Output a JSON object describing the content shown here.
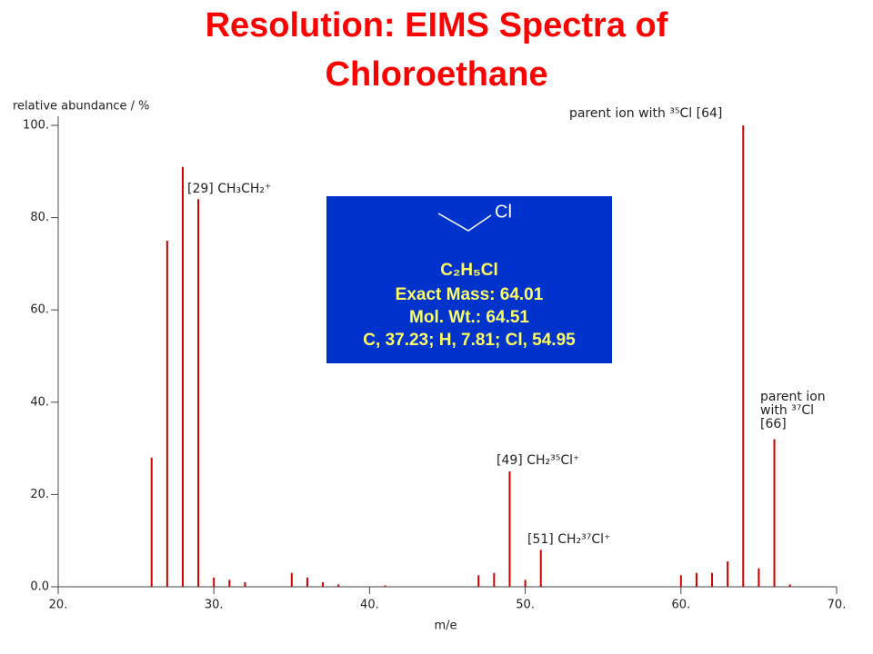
{
  "chart_data": {
    "type": "bar",
    "title": [
      "Resolution: EIMS Spectra of",
      "Chloroethane"
    ],
    "y_label": "relative abundance / %",
    "x_label": "m/e",
    "color": "#cc0000",
    "x": [
      26,
      27,
      28,
      29,
      30,
      31,
      32,
      35,
      36,
      37,
      38,
      41,
      47,
      48,
      49,
      50,
      51,
      60,
      61,
      62,
      63,
      64,
      65,
      66,
      67
    ],
    "values": [
      28,
      75,
      91,
      84,
      2,
      1.5,
      1,
      3,
      2,
      1,
      0.5,
      0.3,
      2.5,
      3,
      25,
      1.5,
      8,
      2.5,
      3,
      3,
      5.5,
      100,
      4,
      32,
      0.5
    ],
    "xlim": [
      20,
      70
    ],
    "ylim": [
      0,
      100
    ],
    "xticks": [
      {
        "value": 20,
        "label": "20."
      },
      {
        "value": 30,
        "label": "30."
      },
      {
        "value": 40,
        "label": "40."
      },
      {
        "value": 50,
        "label": "50."
      },
      {
        "value": 60,
        "label": "60."
      },
      {
        "value": 70,
        "label": "70."
      }
    ],
    "yticks": [
      {
        "value": 0,
        "label": "0.0"
      },
      {
        "value": 20,
        "label": "20."
      },
      {
        "value": 40,
        "label": "40."
      },
      {
        "value": 60,
        "label": "60."
      },
      {
        "value": 80,
        "label": "80."
      },
      {
        "value": 100,
        "label": "100."
      }
    ],
    "annotations": [
      {
        "lines": [
          "[29] CH₃CH₂⁺"
        ]
      },
      {
        "lines": [
          "parent ion with ³⁵Cl [64]"
        ]
      },
      {
        "lines": [
          "[49] CH₂³⁵Cl⁺"
        ]
      },
      {
        "lines": [
          "[51] CH₂³⁷Cl⁺"
        ]
      },
      {
        "lines": [
          "parent ion",
          "with ³⁷Cl",
          "[66]"
        ]
      }
    ],
    "info_box": {
      "atom": "Cl",
      "formula": "C₂H₅Cl",
      "exact_mass": "Exact Mass: 64.01",
      "mol_wt": "Mol. Wt.: 64.51",
      "composition": "C, 37.23; H, 7.81; Cl, 54.95"
    }
  }
}
